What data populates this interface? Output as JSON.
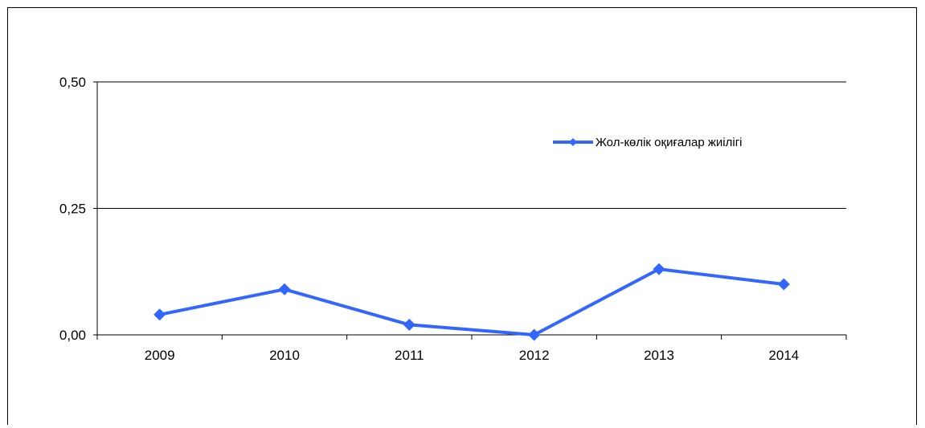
{
  "chart_data": {
    "type": "line",
    "title": "",
    "xlabel": "",
    "ylabel": "",
    "categories": [
      "2009",
      "2010",
      "2011",
      "2012",
      "2013",
      "2014"
    ],
    "series": [
      {
        "name": "Жол-көлік оқиғалар жиілігі",
        "values": [
          0.04,
          0.09,
          0.02,
          0.0,
          0.13,
          0.1
        ],
        "color": "#3366ff"
      }
    ],
    "ylim": [
      0,
      0.5
    ],
    "yticks": [
      0,
      0.25,
      0.5
    ],
    "ytick_labels": [
      "0,00",
      "0,25",
      "0,50"
    ],
    "grid": true,
    "legend_position": "top-right"
  }
}
